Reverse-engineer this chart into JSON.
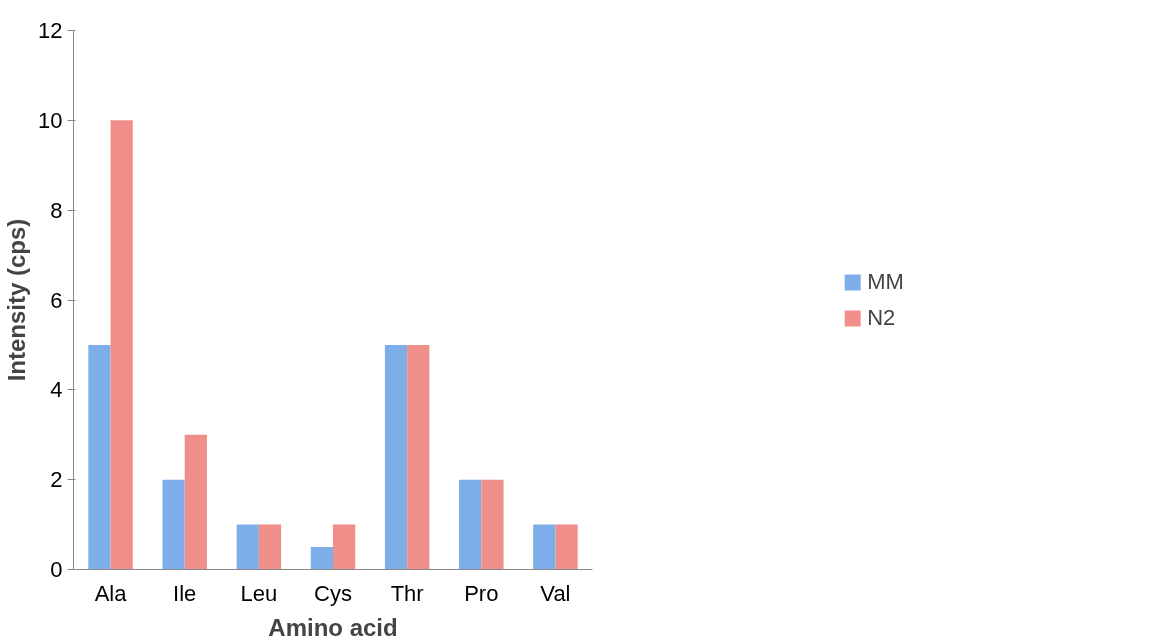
{
  "chart_data": {
    "type": "bar",
    "xlabel": "Amino acid",
    "ylabel": "Intensity (cps)",
    "categories": [
      "Ala",
      "Ile",
      "Leu",
      "Cys",
      "Thr",
      "Pro",
      "Val"
    ],
    "series": [
      {
        "name": "MM",
        "color": "#7eaeea",
        "values": [
          5,
          2,
          1,
          0.5,
          5,
          2,
          1
        ]
      },
      {
        "name": "N2",
        "color": "#f08e8a",
        "values": [
          10,
          3,
          1,
          1,
          5,
          2,
          1
        ]
      }
    ],
    "ylim": [
      0,
      12
    ],
    "yticks": [
      0,
      2,
      4,
      6,
      8,
      10,
      12
    ],
    "grid": false,
    "legend": "right"
  }
}
